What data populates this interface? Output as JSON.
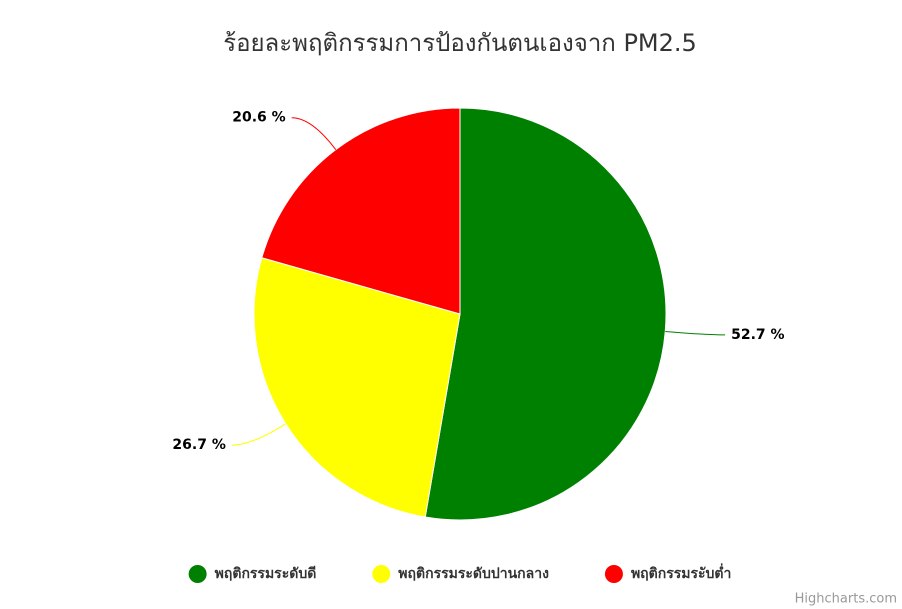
{
  "chart_data": {
    "type": "pie",
    "title": "ร้อยละพฤติกรรมการป้องกันตนเองจาก PM2.5",
    "categories": [
      "พฤติกรรมระดับดี",
      "พฤติกรรมระดับปานกลาง",
      "พฤติกรรมระับต่ำ"
    ],
    "values": [
      52.7,
      26.7,
      20.6
    ],
    "value_labels": [
      "52.7 %",
      "26.7 %",
      "20.6 %"
    ],
    "colors": [
      "#008000",
      "#ffff00",
      "#ff0000"
    ],
    "credit": "Highcharts.com"
  }
}
